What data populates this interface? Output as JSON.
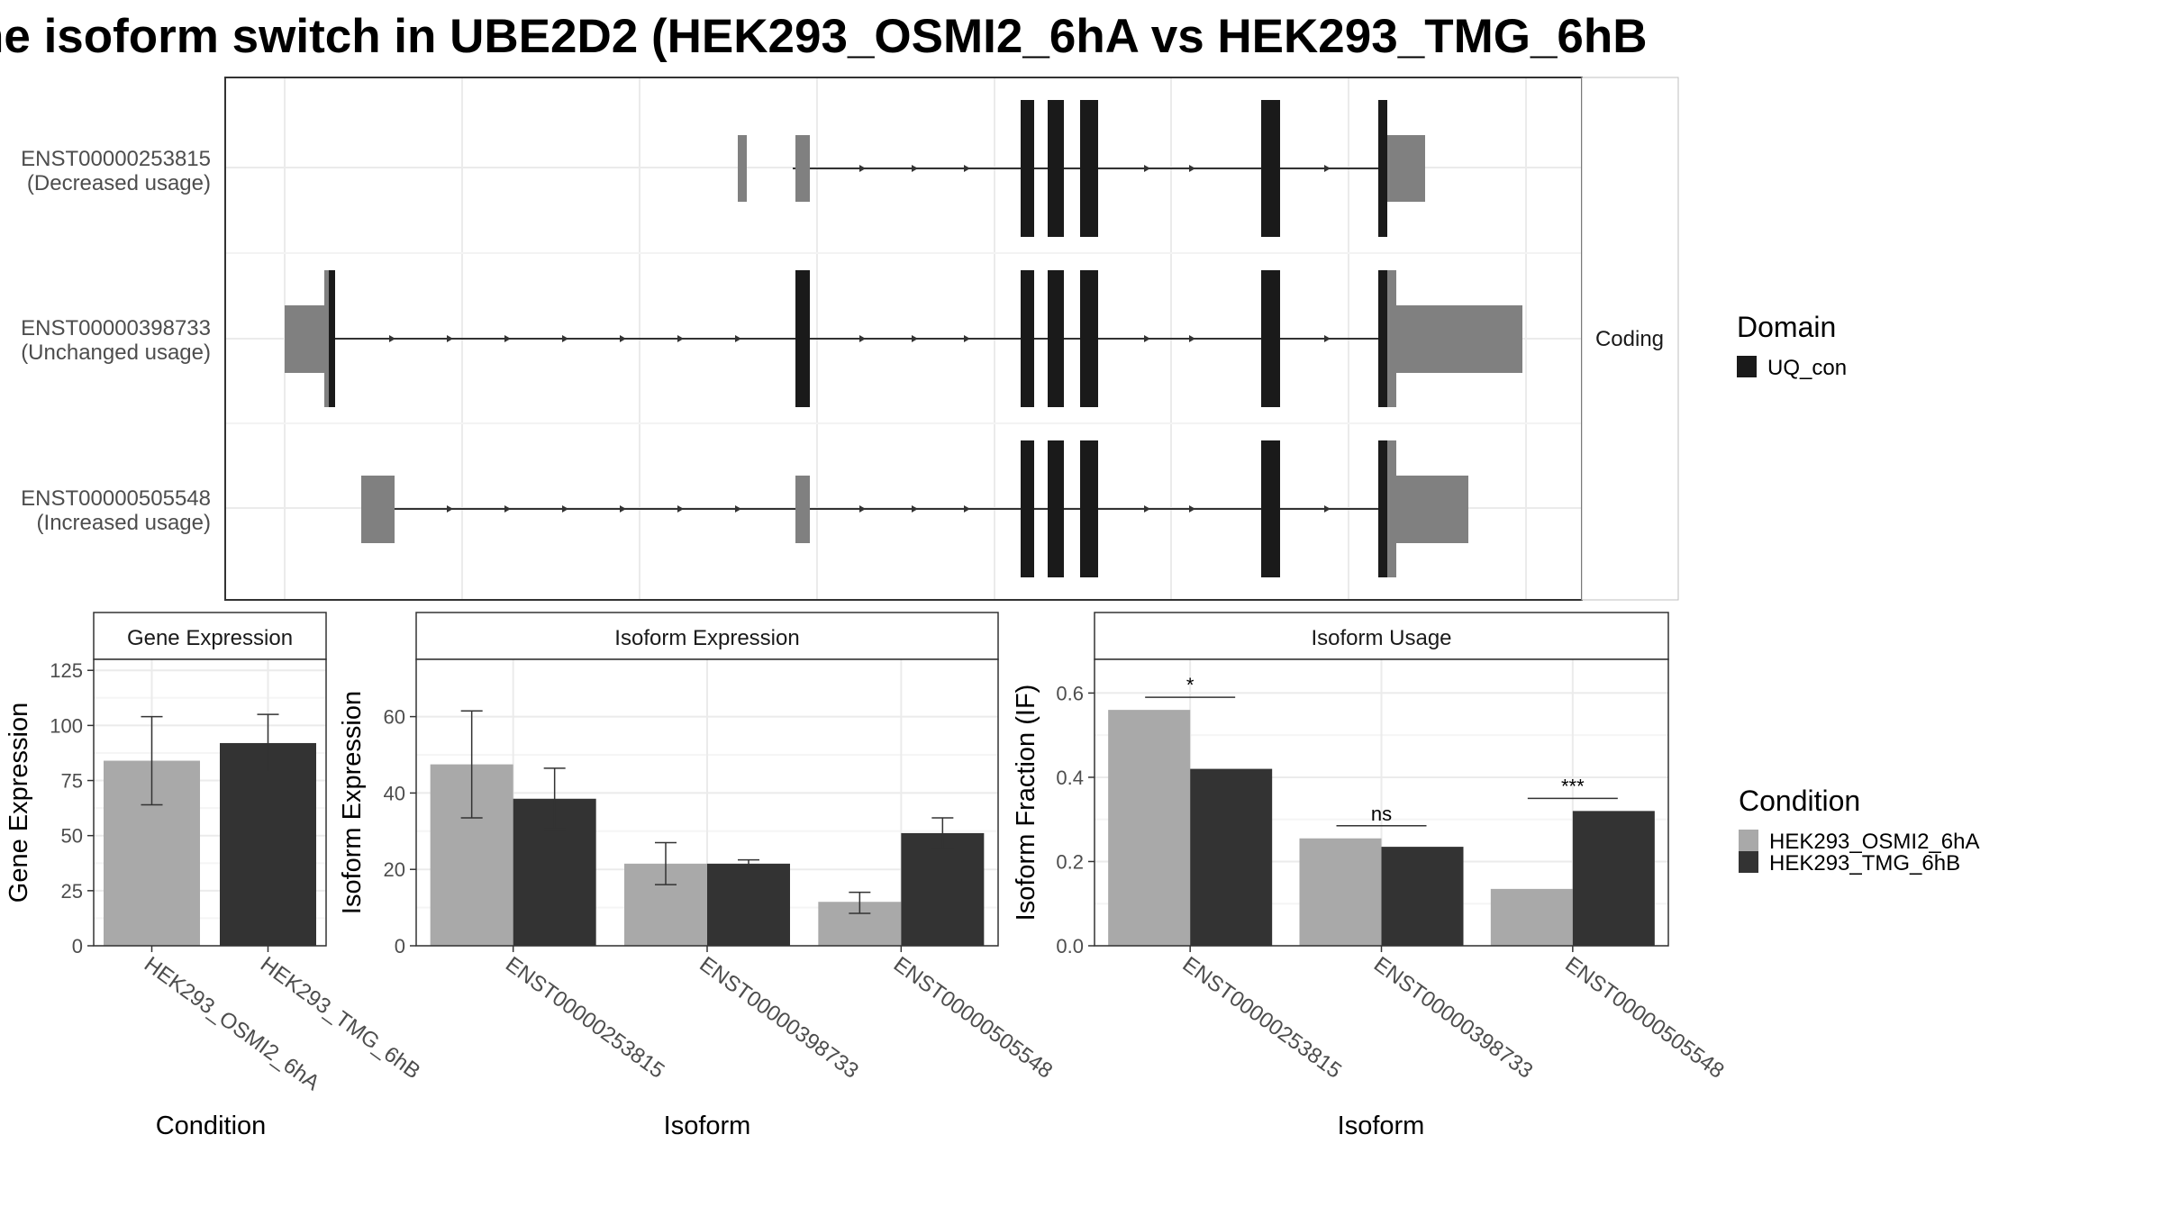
{
  "title": "he isoform switch in UBE2D2 (HEK293_OSMI2_6hA vs HEK293_TMG_6hB",
  "structure": {
    "strip_label": "Coding",
    "domain_legend": {
      "title": "Domain",
      "item": "UQ_con",
      "color": "#1a1a1a"
    },
    "isoforms": [
      {
        "id": "ENST00000253815",
        "usage": "(Decreased usage)"
      },
      {
        "id": "ENST00000398733",
        "usage": "(Unchanged usage)"
      },
      {
        "id": "ENST00000505548",
        "usage": "(Increased usage)"
      }
    ]
  },
  "condition_legend": {
    "title": "Condition",
    "items": [
      {
        "label": "HEK293_OSMI2_6hA",
        "color": "#a9a9a9"
      },
      {
        "label": "HEK293_TMG_6hB",
        "color": "#333333"
      }
    ]
  },
  "chart_data": [
    {
      "type": "bar",
      "title": "Gene Expression",
      "xlabel": "Condition",
      "ylabel": "Gene Expression",
      "ylim": [
        0,
        130
      ],
      "yticks": [
        0,
        25,
        50,
        75,
        100,
        125
      ],
      "categories": [
        "HEK293_OSMI2_6hA",
        "HEK293_TMG_6hB"
      ],
      "values": [
        84,
        92
      ],
      "error_low": [
        64,
        79
      ],
      "error_high": [
        104,
        105
      ]
    },
    {
      "type": "bar",
      "title": "Isoform Expression",
      "xlabel": "Isoform",
      "ylabel": "Isoform Expression",
      "ylim": [
        0,
        75
      ],
      "yticks": [
        0,
        20,
        40,
        60
      ],
      "categories": [
        "ENST00000253815",
        "ENST00000398733",
        "ENST00000505548"
      ],
      "series": [
        {
          "name": "HEK293_OSMI2_6hA",
          "values": [
            47.5,
            21.5,
            11.5
          ],
          "error_low": [
            33.5,
            16,
            8.5
          ],
          "error_high": [
            61.5,
            27,
            14
          ]
        },
        {
          "name": "HEK293_TMG_6hB",
          "values": [
            38.5,
            21.5,
            29.5
          ],
          "error_low": [
            30.5,
            20.5,
            25.5
          ],
          "error_high": [
            46.5,
            22.5,
            33.5
          ]
        }
      ]
    },
    {
      "type": "bar",
      "title": "Isoform Usage",
      "xlabel": "Isoform",
      "ylabel": "Isoform Fraction (IF)",
      "ylim": [
        0,
        0.68
      ],
      "yticks": [
        0.0,
        0.2,
        0.4,
        0.6
      ],
      "categories": [
        "ENST00000253815",
        "ENST00000398733",
        "ENST00000505548"
      ],
      "series": [
        {
          "name": "HEK293_OSMI2_6hA",
          "values": [
            0.56,
            0.255,
            0.135
          ]
        },
        {
          "name": "HEK293_TMG_6hB",
          "values": [
            0.42,
            0.235,
            0.32
          ]
        }
      ],
      "significance": [
        "*",
        "ns",
        "***"
      ]
    }
  ]
}
